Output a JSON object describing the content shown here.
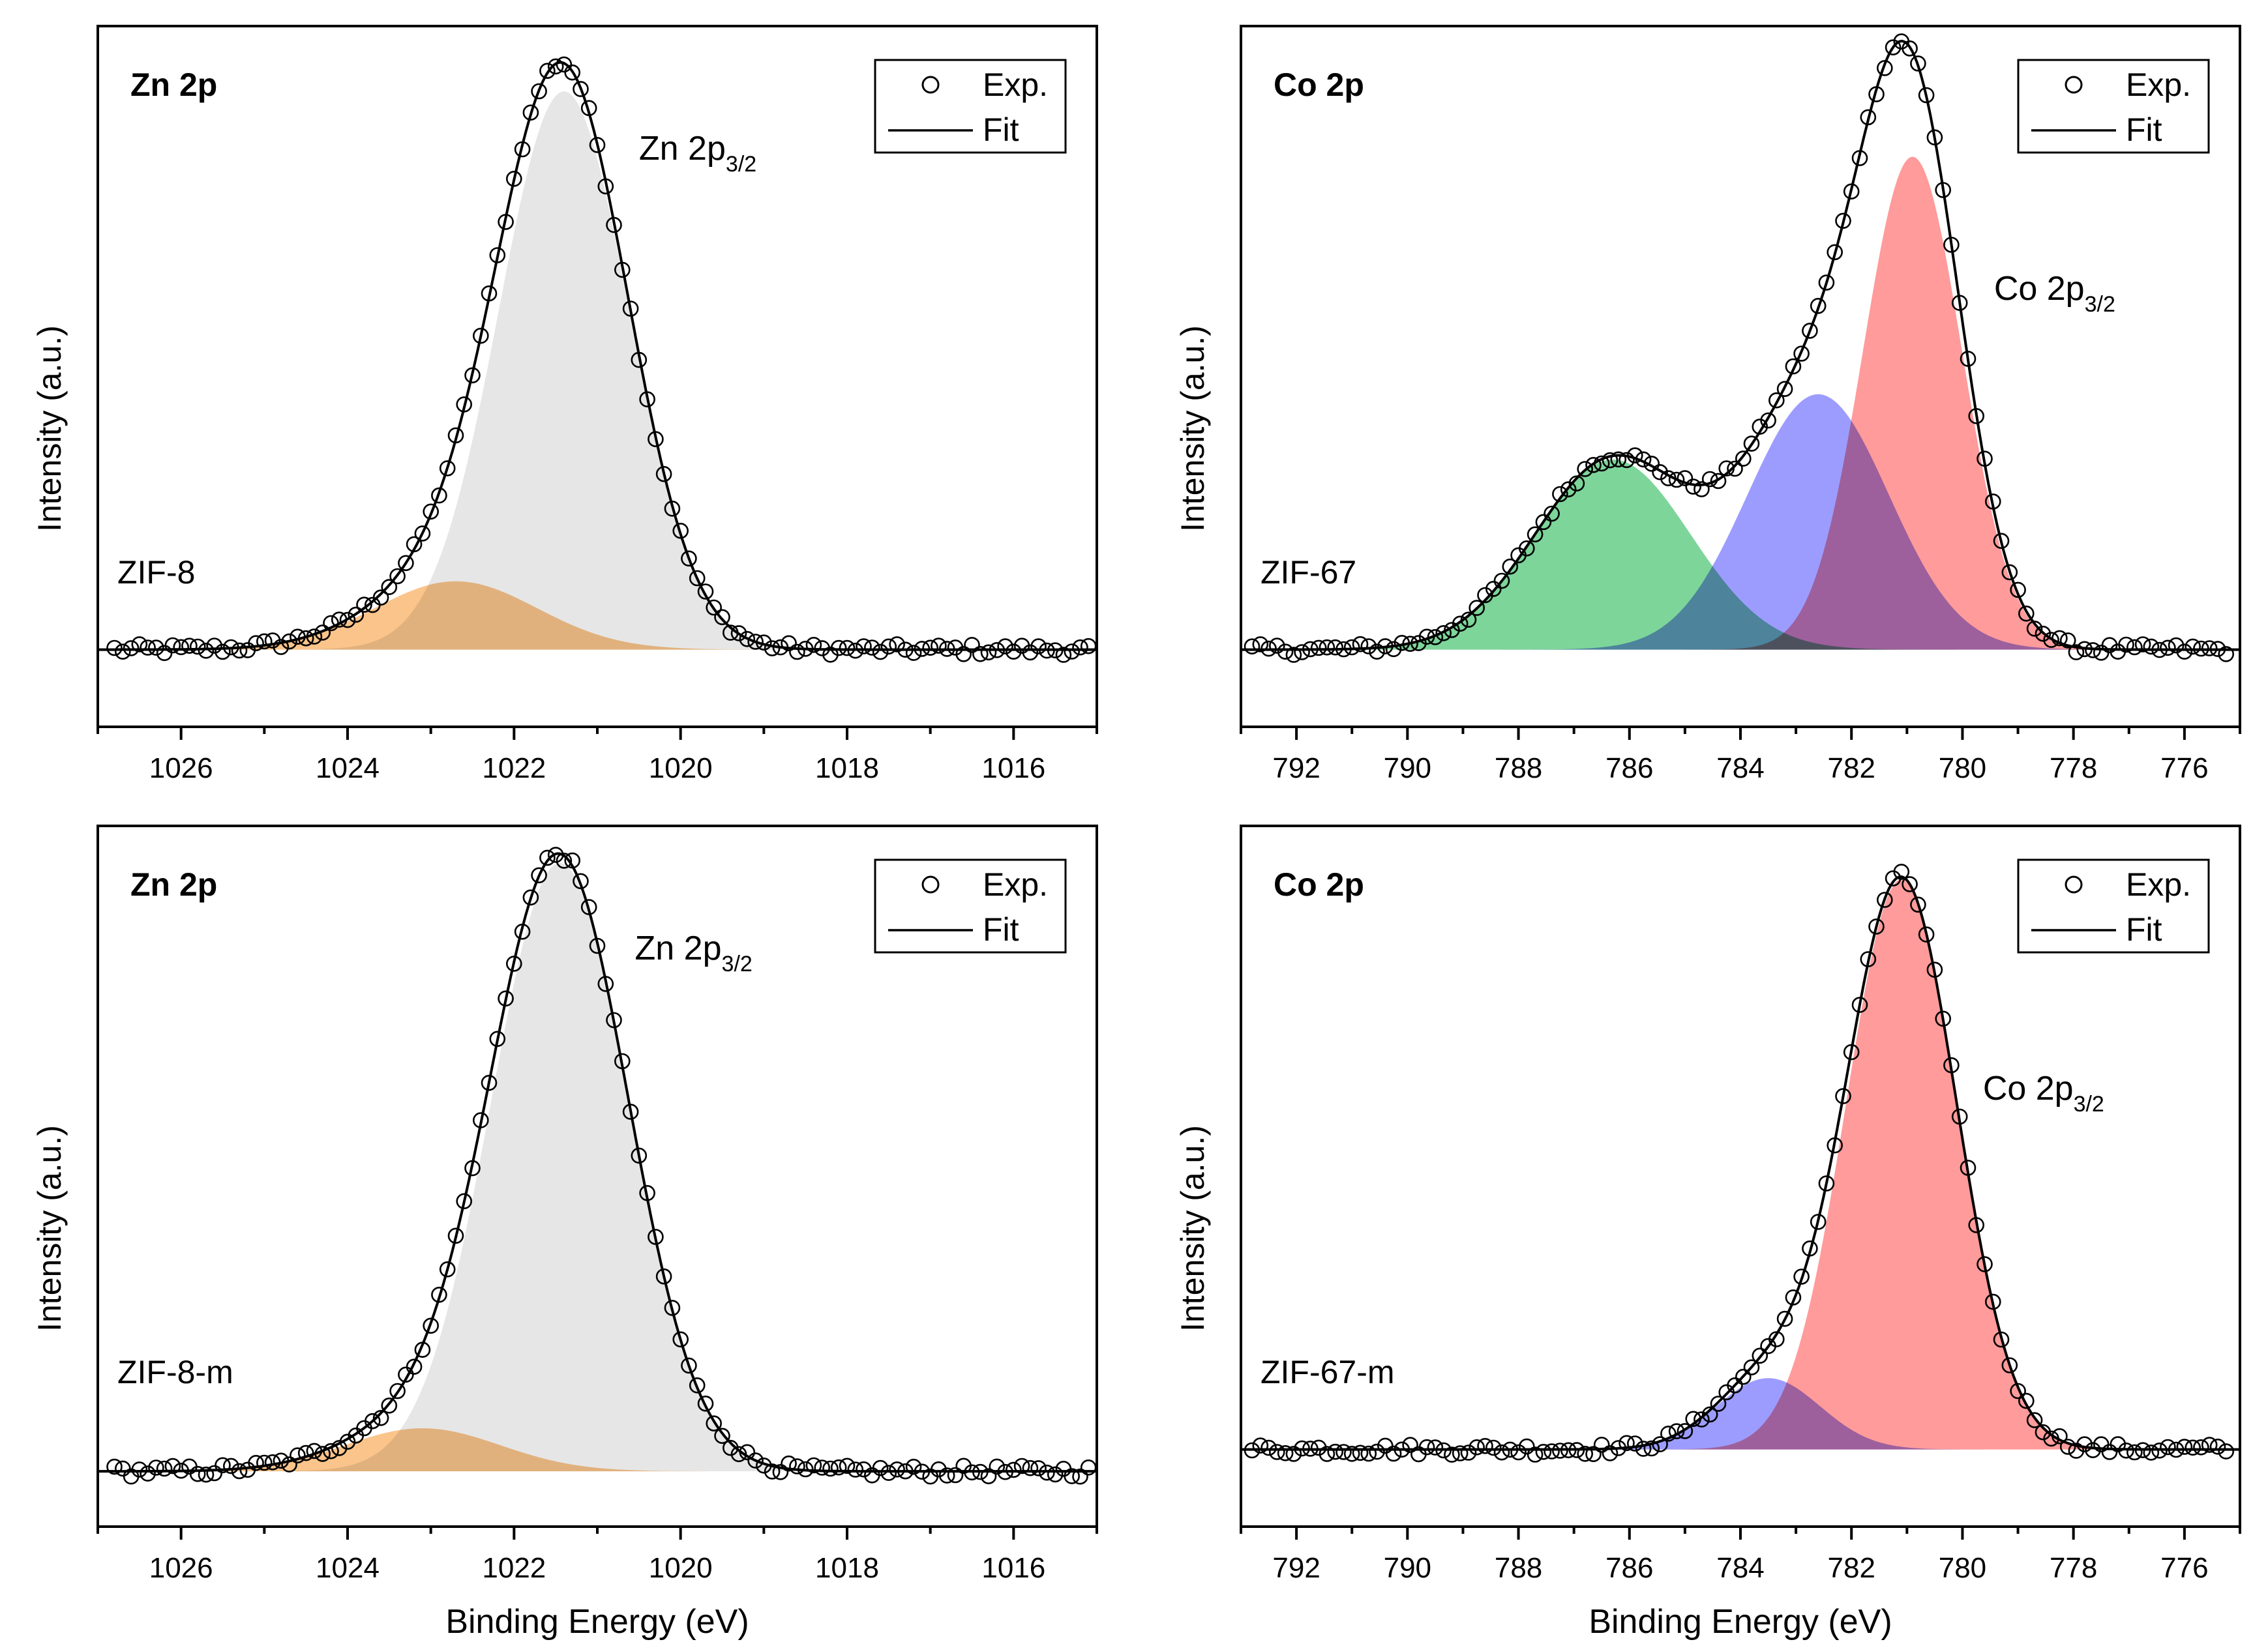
{
  "chart_data": [
    {
      "type": "line",
      "panel_label": "Zn 2p",
      "sample_label": "ZIF-8",
      "peak_label": {
        "main": "Zn 2p",
        "sub": "3/2"
      },
      "xlabel": "",
      "ylabel": "Intensity (a.u.)",
      "xlim": [
        1027,
        1015
      ],
      "x_reversed": true,
      "x_ticks": [
        1026,
        1024,
        1022,
        1020,
        1018,
        1016
      ],
      "ylim": [
        -0.13,
        1.05
      ],
      "yticks_shown": false,
      "legend": {
        "position": "top-right",
        "entries": [
          "Exp.",
          "Fit"
        ]
      },
      "background": 0.0,
      "components": [
        {
          "center": 1021.4,
          "amplitude": 0.94,
          "fwhm": 1.85,
          "color": "#e6e6e6"
        },
        {
          "center": 1022.7,
          "amplitude": 0.115,
          "fwhm": 2.3,
          "color": "#f9b46a"
        }
      ],
      "exp_points": {
        "x_start": 1026.8,
        "x_end": 1015.1,
        "step": 0.1
      }
    },
    {
      "type": "line",
      "panel_label": "Co 2p",
      "sample_label": "ZIF-67",
      "peak_label": {
        "main": "Co 2p",
        "sub": "3/2"
      },
      "xlabel": "",
      "ylabel": "Intensity (a.u.)",
      "xlim": [
        793,
        775
      ],
      "x_reversed": true,
      "x_ticks": [
        792,
        790,
        788,
        786,
        784,
        782,
        780,
        778,
        776
      ],
      "ylim": [
        -0.13,
        1.05
      ],
      "yticks_shown": false,
      "legend": {
        "position": "top-right",
        "entries": [
          "Exp.",
          "Fit"
        ]
      },
      "background": 0.0,
      "components": [
        {
          "center": 780.9,
          "amplitude": 0.83,
          "fwhm": 2.1,
          "color": "#ff7f7f"
        },
        {
          "center": 782.6,
          "amplitude": 0.43,
          "fwhm": 3.0,
          "color": "#8080ff"
        },
        {
          "center": 786.3,
          "amplitude": 0.32,
          "fwhm": 3.3,
          "color": "#59c97e"
        }
      ],
      "exp_points": {
        "x_start": 792.8,
        "x_end": 775.2,
        "step": 0.15
      }
    },
    {
      "type": "line",
      "panel_label": "Zn 2p",
      "sample_label": "ZIF-8-m",
      "peak_label": {
        "main": "Zn 2p",
        "sub": "3/2"
      },
      "xlabel": "Binding Energy (eV)",
      "ylabel": "Intensity (a.u.)",
      "xlim": [
        1027,
        1015
      ],
      "x_reversed": true,
      "x_ticks": [
        1026,
        1024,
        1022,
        1020,
        1018,
        1016
      ],
      "ylim": [
        -0.09,
        1.05
      ],
      "yticks_shown": false,
      "legend": {
        "position": "top-right",
        "entries": [
          "Exp.",
          "Fit"
        ]
      },
      "background": 0.0,
      "components": [
        {
          "center": 1021.45,
          "amplitude": 0.99,
          "fwhm": 1.95,
          "color": "#e6e6e6"
        },
        {
          "center": 1023.1,
          "amplitude": 0.07,
          "fwhm": 2.2,
          "color": "#f9b46a"
        }
      ],
      "exp_points": {
        "x_start": 1026.8,
        "x_end": 1015.1,
        "step": 0.1
      }
    },
    {
      "type": "line",
      "panel_label": "Co 2p",
      "sample_label": "ZIF-67-m",
      "peak_label": {
        "main": "Co 2p",
        "sub": "3/2"
      },
      "xlabel": "Binding Energy (eV)",
      "ylabel": "Intensity (a.u.)",
      "xlim": [
        793,
        775
      ],
      "x_reversed": true,
      "x_ticks": [
        792,
        790,
        788,
        786,
        784,
        782,
        780,
        778,
        776
      ],
      "ylim": [
        -0.13,
        1.05
      ],
      "yticks_shown": false,
      "legend": {
        "position": "top-right",
        "entries": [
          "Exp.",
          "Fit"
        ]
      },
      "background": 0.0,
      "components": [
        {
          "center": 781.1,
          "amplitude": 0.96,
          "fwhm": 2.35,
          "color": "#ff7f7f"
        },
        {
          "center": 783.5,
          "amplitude": 0.12,
          "fwhm": 2.2,
          "color": "#8080ff"
        }
      ],
      "exp_points": {
        "x_start": 792.8,
        "x_end": 775.2,
        "step": 0.15
      }
    }
  ]
}
